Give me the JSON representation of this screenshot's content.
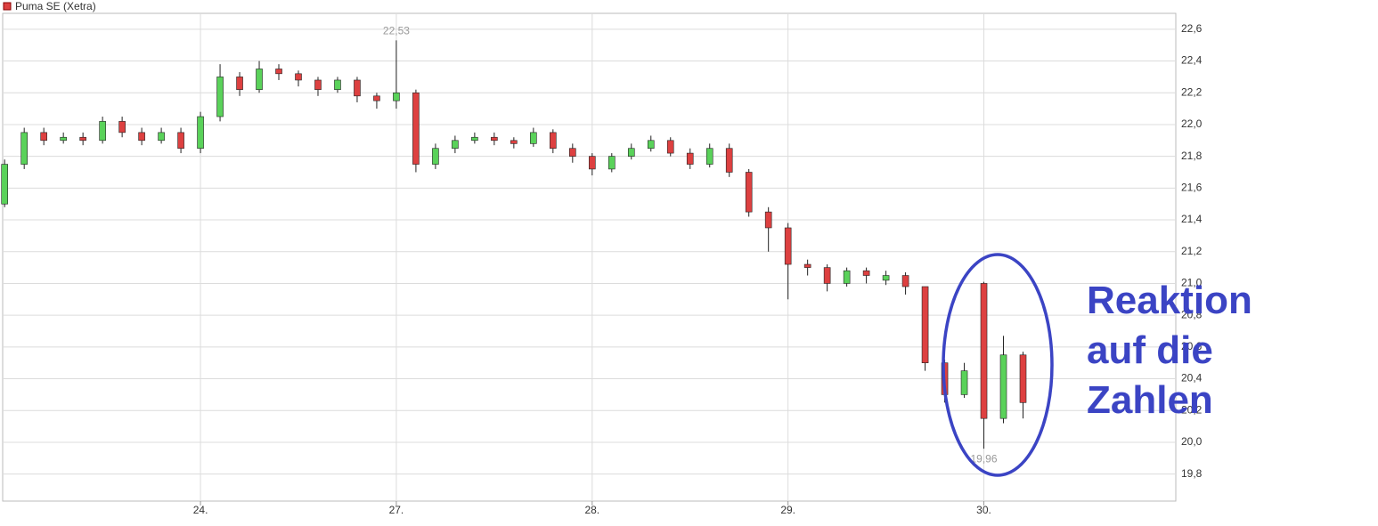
{
  "chart_data": {
    "type": "candlestick",
    "legend": "Puma SE (Xetra)",
    "x": [
      0.0,
      0.1,
      0.2,
      0.3,
      0.4,
      0.5,
      0.6,
      0.7,
      0.8,
      0.9,
      1.0,
      1.1,
      1.2,
      1.3,
      1.4,
      1.5,
      1.6,
      1.7,
      1.8,
      1.9,
      2.0,
      2.1,
      2.2,
      2.3,
      2.4,
      2.5,
      2.6,
      2.7,
      2.8,
      2.9,
      3.0,
      3.1,
      3.2,
      3.3,
      3.4,
      3.5,
      3.6,
      3.7,
      3.8,
      3.9,
      4.0,
      4.1,
      4.2,
      4.3,
      4.4,
      4.5,
      4.6,
      4.7,
      4.8,
      4.9,
      5.0,
      5.1,
      5.2
    ],
    "open": [
      21.5,
      21.75,
      21.95,
      21.9,
      21.92,
      21.9,
      22.02,
      21.95,
      21.9,
      21.95,
      21.85,
      22.05,
      22.3,
      22.22,
      22.35,
      22.32,
      22.28,
      22.22,
      22.28,
      22.18,
      22.15,
      22.2,
      21.75,
      21.85,
      21.9,
      21.92,
      21.9,
      21.88,
      21.95,
      21.85,
      21.8,
      21.72,
      21.8,
      21.85,
      21.9,
      21.82,
      21.75,
      21.85,
      21.7,
      21.45,
      21.35,
      21.12,
      21.1,
      21.0,
      21.08,
      21.02,
      21.05,
      20.98,
      20.5,
      20.3,
      21.0,
      20.15,
      20.55
    ],
    "high": [
      21.78,
      21.98,
      21.98,
      21.95,
      21.95,
      22.05,
      22.05,
      21.98,
      21.98,
      21.98,
      22.08,
      22.38,
      22.33,
      22.4,
      22.38,
      22.34,
      22.3,
      22.3,
      22.3,
      22.2,
      22.53,
      22.22,
      21.88,
      21.93,
      21.95,
      21.95,
      21.92,
      21.98,
      21.97,
      21.88,
      21.82,
      21.82,
      21.88,
      21.93,
      21.92,
      21.85,
      21.88,
      21.88,
      21.72,
      21.48,
      21.38,
      21.15,
      21.12,
      21.1,
      21.1,
      21.08,
      21.07,
      20.98,
      20.52,
      20.5,
      21.01,
      20.67,
      20.57
    ],
    "low": [
      21.48,
      21.72,
      21.87,
      21.88,
      21.87,
      21.88,
      21.92,
      21.87,
      21.88,
      21.82,
      21.82,
      22.02,
      22.18,
      22.2,
      22.28,
      22.24,
      22.18,
      22.2,
      22.14,
      22.1,
      22.1,
      21.7,
      21.72,
      21.82,
      21.88,
      21.87,
      21.85,
      21.86,
      21.82,
      21.76,
      21.68,
      21.7,
      21.78,
      21.83,
      21.8,
      21.72,
      21.73,
      21.67,
      21.42,
      21.2,
      20.9,
      21.05,
      20.95,
      20.98,
      21.0,
      20.99,
      20.93,
      20.45,
      20.25,
      20.28,
      19.96,
      20.12,
      20.15
    ],
    "close": [
      21.75,
      21.95,
      21.9,
      21.92,
      21.9,
      22.02,
      21.95,
      21.9,
      21.95,
      21.85,
      22.05,
      22.3,
      22.22,
      22.35,
      22.32,
      22.28,
      22.22,
      22.28,
      22.18,
      22.15,
      22.2,
      21.75,
      21.85,
      21.9,
      21.92,
      21.9,
      21.88,
      21.95,
      21.85,
      21.8,
      21.72,
      21.8,
      21.85,
      21.9,
      21.82,
      21.75,
      21.85,
      21.7,
      21.45,
      21.35,
      21.12,
      21.1,
      21.0,
      21.08,
      21.05,
      21.05,
      20.98,
      20.5,
      20.3,
      20.45,
      20.15,
      20.55,
      20.25
    ],
    "up_color": "#5ad25a",
    "down_color": "#dd4040",
    "xlim": [
      -0.01,
      5.98
    ],
    "xticks": [
      {
        "value": 1,
        "label": "24."
      },
      {
        "value": 2,
        "label": "27."
      },
      {
        "value": 3,
        "label": "28."
      },
      {
        "value": 4,
        "label": "29."
      },
      {
        "value": 5,
        "label": "30."
      }
    ],
    "ylim": [
      19.63,
      22.7
    ],
    "yticks": [
      {
        "value": 19.8,
        "label": "19,8"
      },
      {
        "value": 20.0,
        "label": "20,0"
      },
      {
        "value": 20.2,
        "label": "20,2"
      },
      {
        "value": 20.4,
        "label": "20,4"
      },
      {
        "value": 20.6,
        "label": "20,6"
      },
      {
        "value": 20.8,
        "label": "20,8"
      },
      {
        "value": 21.0,
        "label": "21,0"
      },
      {
        "value": 21.2,
        "label": "21,2"
      },
      {
        "value": 21.4,
        "label": "21,4"
      },
      {
        "value": 21.6,
        "label": "21,6"
      },
      {
        "value": 21.8,
        "label": "21,8"
      },
      {
        "value": 22.0,
        "label": "22,0"
      },
      {
        "value": 22.2,
        "label": "22,2"
      },
      {
        "value": 22.4,
        "label": "22,4"
      },
      {
        "value": 22.6,
        "label": "22,6"
      }
    ],
    "grid": true,
    "annotations": [
      {
        "x": 2.0,
        "value": 22.53,
        "label": "22,53"
      },
      {
        "x": 5.0,
        "value": 19.96,
        "label": "19,96"
      }
    ],
    "callout": "Reaktion auf die Zahlen"
  }
}
